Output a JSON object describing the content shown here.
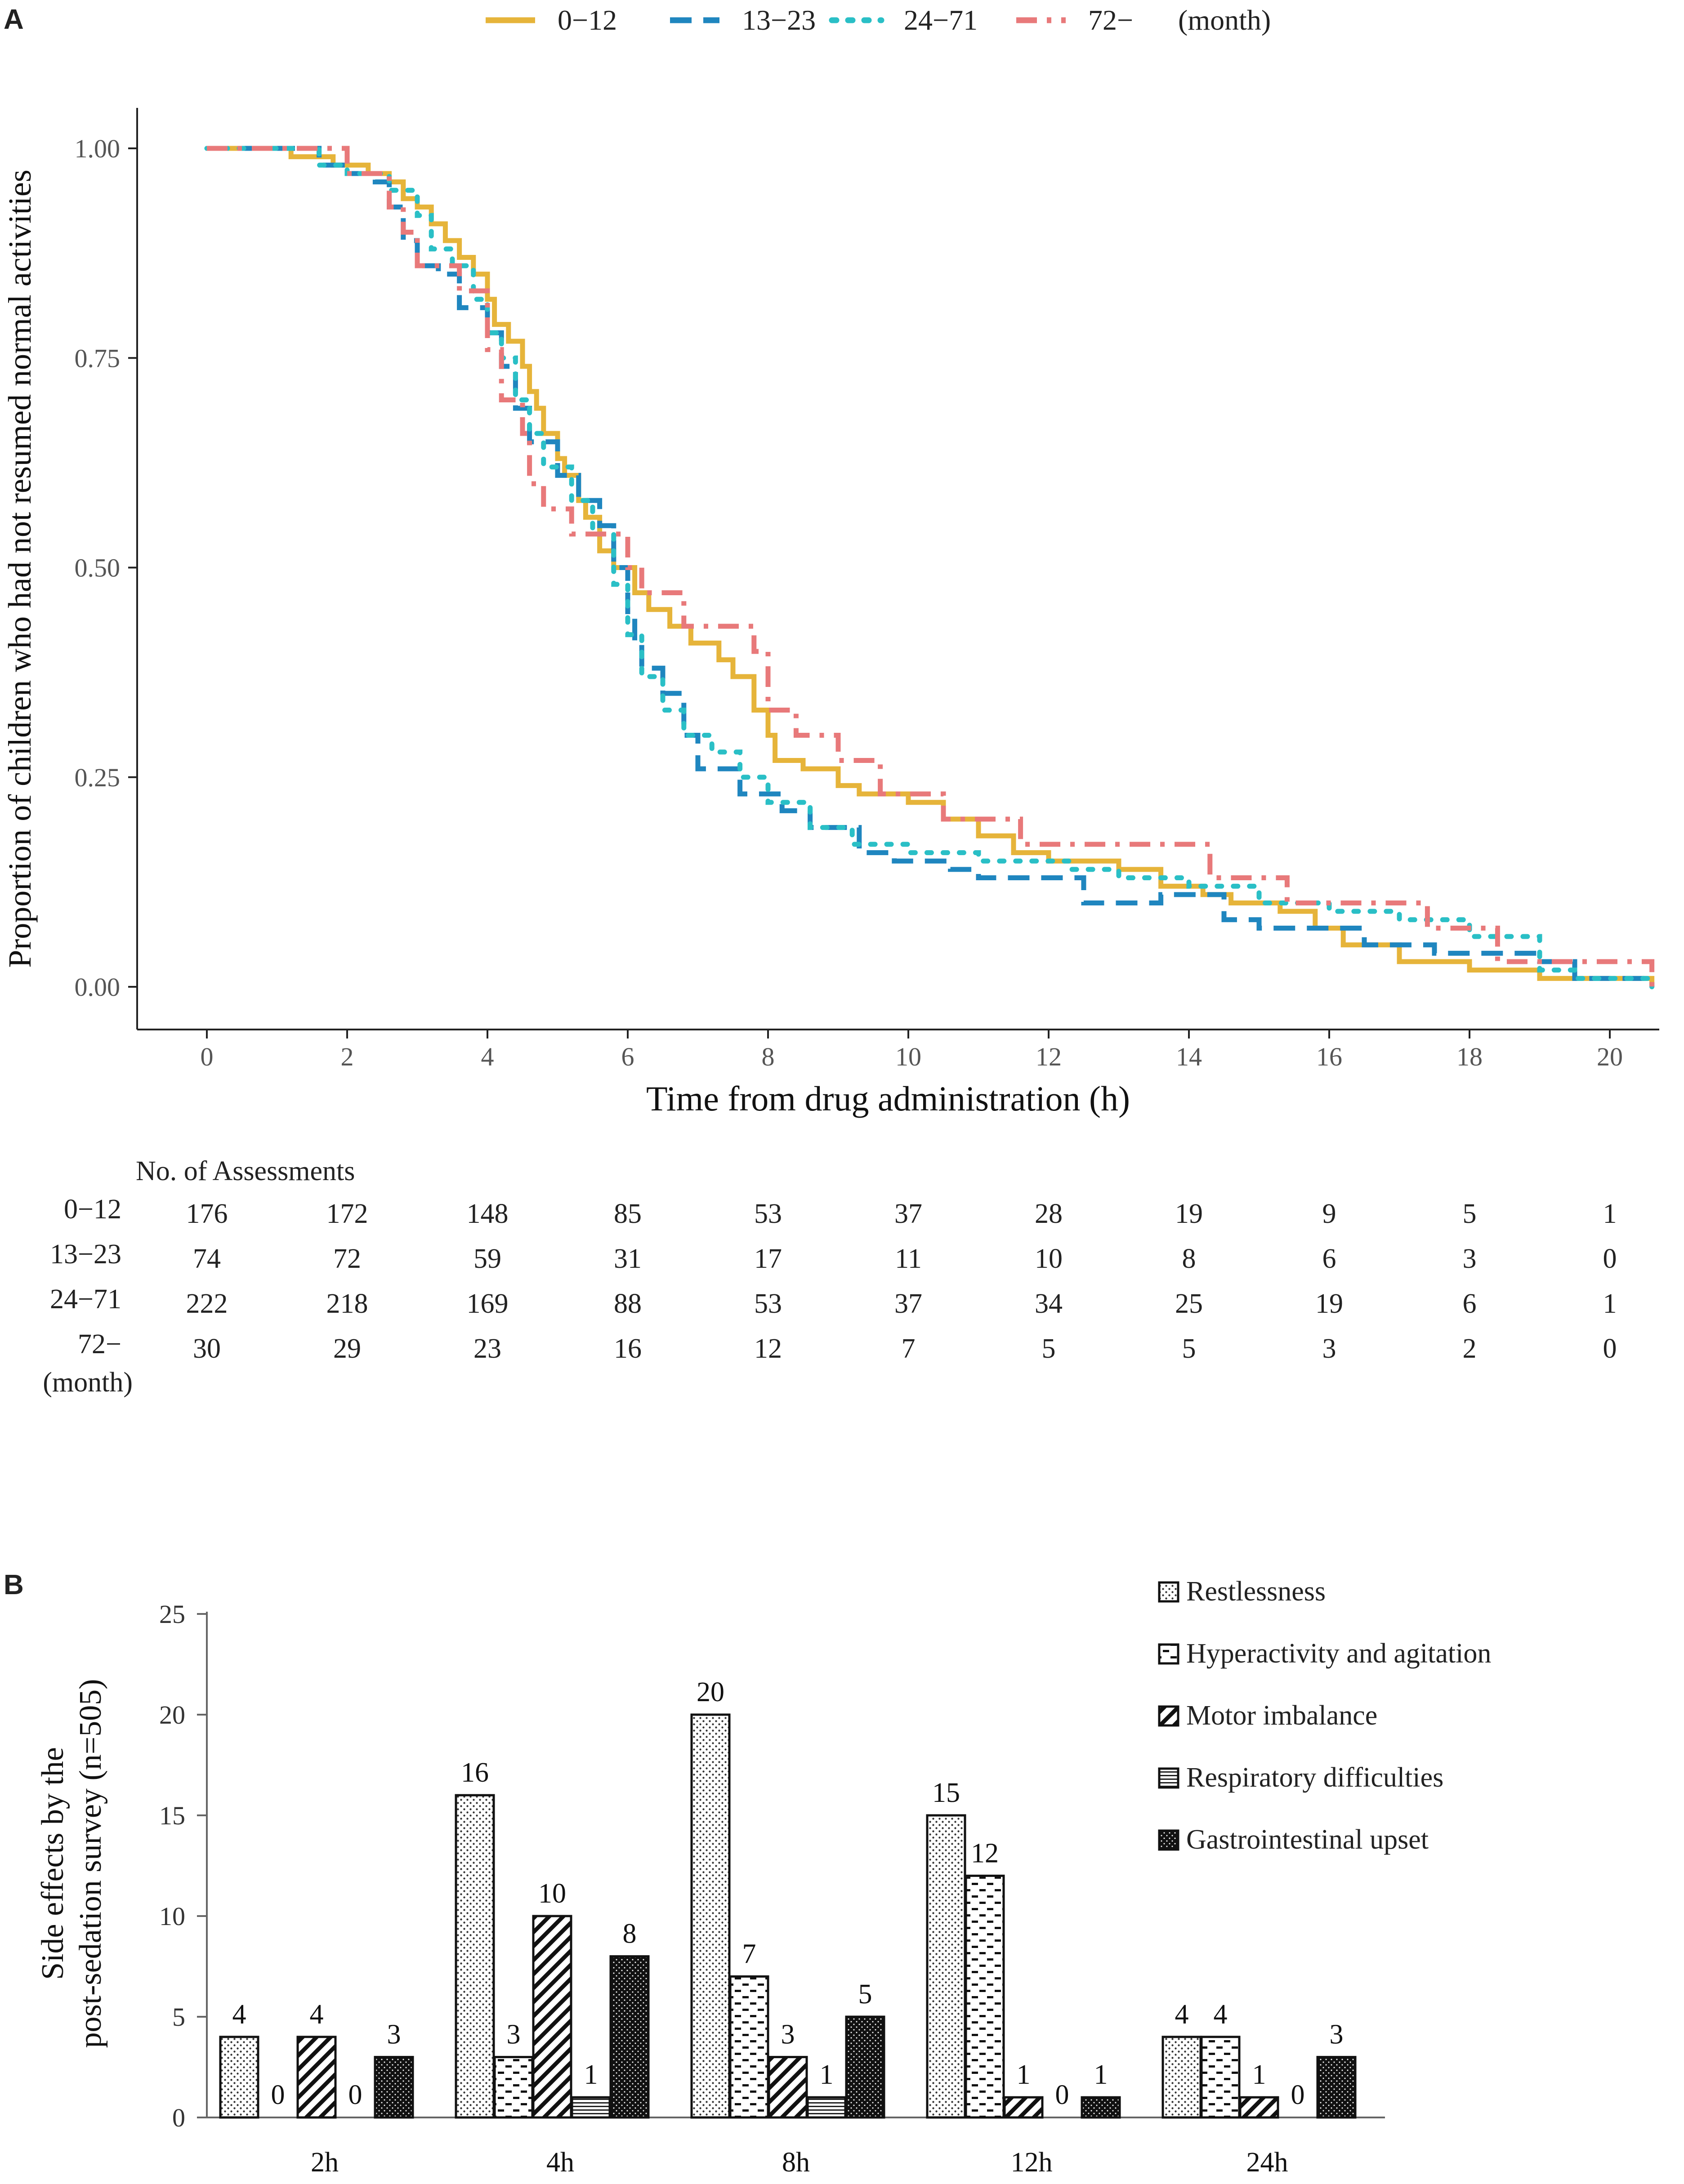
{
  "panel_a": {
    "letter": "A",
    "legend_unit": "(month)",
    "risk_table": {
      "title": "No. of Assessments",
      "unit_label": "(month)",
      "rows": [
        {
          "label": "0−12",
          "values": [
            176,
            172,
            148,
            85,
            53,
            37,
            28,
            19,
            9,
            5,
            1
          ]
        },
        {
          "label": "13−23",
          "values": [
            74,
            72,
            59,
            31,
            17,
            11,
            10,
            8,
            6,
            3,
            0
          ]
        },
        {
          "label": "24−71",
          "values": [
            222,
            218,
            169,
            88,
            53,
            37,
            34,
            25,
            19,
            6,
            1
          ]
        },
        {
          "label": "72−",
          "values": [
            30,
            29,
            23,
            16,
            12,
            7,
            5,
            5,
            3,
            2,
            0
          ]
        }
      ]
    }
  },
  "panel_b": {
    "letter": "B"
  },
  "colors": {
    "g0_12": "#E6B43A",
    "g13_23": "#1F86BF",
    "g24_71": "#2ABFC6",
    "g72": "#E8797A",
    "axis": "#222222"
  },
  "chart_data": [
    {
      "type": "line",
      "subtype": "kaplan-meier step",
      "title": "",
      "xlabel": "Time from drug administration (h)",
      "ylabel": "Proportion of children who had not resumed normal activities",
      "xlim": [
        0,
        20.7
      ],
      "ylim": [
        0,
        1
      ],
      "x_ticks": [
        0,
        2,
        4,
        6,
        8,
        10,
        12,
        14,
        16,
        18,
        20
      ],
      "y_ticks": [
        "0.00",
        "0.25",
        "0.50",
        "0.75",
        "1.00"
      ],
      "legend_position": "top",
      "series": [
        {
          "name": "0−12",
          "style": "solid",
          "points": [
            [
              0,
              1
            ],
            [
              1.0,
              1
            ],
            [
              1.2,
              0.99
            ],
            [
              1.8,
              0.98
            ],
            [
              2.3,
              0.97
            ],
            [
              2.6,
              0.96
            ],
            [
              2.8,
              0.94
            ],
            [
              3.0,
              0.93
            ],
            [
              3.2,
              0.91
            ],
            [
              3.4,
              0.89
            ],
            [
              3.6,
              0.87
            ],
            [
              3.8,
              0.85
            ],
            [
              4.0,
              0.82
            ],
            [
              4.1,
              0.79
            ],
            [
              4.3,
              0.77
            ],
            [
              4.5,
              0.74
            ],
            [
              4.6,
              0.71
            ],
            [
              4.7,
              0.69
            ],
            [
              4.8,
              0.66
            ],
            [
              5.0,
              0.63
            ],
            [
              5.1,
              0.61
            ],
            [
              5.3,
              0.58
            ],
            [
              5.4,
              0.56
            ],
            [
              5.6,
              0.52
            ],
            [
              5.8,
              0.5
            ],
            [
              6.1,
              0.47
            ],
            [
              6.3,
              0.45
            ],
            [
              6.6,
              0.43
            ],
            [
              6.9,
              0.41
            ],
            [
              7.3,
              0.39
            ],
            [
              7.5,
              0.37
            ],
            [
              7.8,
              0.33
            ],
            [
              8.0,
              0.3
            ],
            [
              8.1,
              0.27
            ],
            [
              8.5,
              0.26
            ],
            [
              9.0,
              0.24
            ],
            [
              9.3,
              0.23
            ],
            [
              10.0,
              0.22
            ],
            [
              10.5,
              0.2
            ],
            [
              11.0,
              0.18
            ],
            [
              11.5,
              0.16
            ],
            [
              12.0,
              0.15
            ],
            [
              13.0,
              0.14
            ],
            [
              13.6,
              0.12
            ],
            [
              14.2,
              0.11
            ],
            [
              14.6,
              0.1
            ],
            [
              15.3,
              0.09
            ],
            [
              15.8,
              0.07
            ],
            [
              16.2,
              0.05
            ],
            [
              17.0,
              0.03
            ],
            [
              18.0,
              0.02
            ],
            [
              19.0,
              0.01
            ],
            [
              20.6,
              0.0
            ]
          ]
        },
        {
          "name": "13−23",
          "style": "dashed",
          "points": [
            [
              0,
              1
            ],
            [
              1.3,
              1
            ],
            [
              1.6,
              0.98
            ],
            [
              2.0,
              0.97
            ],
            [
              2.4,
              0.96
            ],
            [
              2.6,
              0.93
            ],
            [
              2.8,
              0.89
            ],
            [
              3.0,
              0.86
            ],
            [
              3.3,
              0.85
            ],
            [
              3.6,
              0.81
            ],
            [
              4.0,
              0.78
            ],
            [
              4.2,
              0.74
            ],
            [
              4.4,
              0.69
            ],
            [
              4.6,
              0.65
            ],
            [
              5.0,
              0.61
            ],
            [
              5.3,
              0.58
            ],
            [
              5.6,
              0.55
            ],
            [
              5.8,
              0.5
            ],
            [
              6.0,
              0.44
            ],
            [
              6.1,
              0.41
            ],
            [
              6.2,
              0.38
            ],
            [
              6.5,
              0.35
            ],
            [
              6.8,
              0.3
            ],
            [
              7.0,
              0.26
            ],
            [
              7.6,
              0.23
            ],
            [
              8.2,
              0.21
            ],
            [
              8.6,
              0.19
            ],
            [
              9.3,
              0.16
            ],
            [
              9.8,
              0.15
            ],
            [
              10.6,
              0.14
            ],
            [
              11.0,
              0.13
            ],
            [
              12.5,
              0.1
            ],
            [
              13.6,
              0.11
            ],
            [
              14.5,
              0.08
            ],
            [
              15.0,
              0.07
            ],
            [
              16.5,
              0.05
            ],
            [
              17.5,
              0.04
            ],
            [
              19.0,
              0.03
            ],
            [
              19.5,
              0.01
            ],
            [
              20.6,
              0.0
            ]
          ]
        },
        {
          "name": "24−71",
          "style": "dotted",
          "points": [
            [
              0,
              1
            ],
            [
              1.2,
              1
            ],
            [
              1.6,
              0.98
            ],
            [
              2.0,
              0.97
            ],
            [
              2.6,
              0.95
            ],
            [
              3.0,
              0.92
            ],
            [
              3.2,
              0.88
            ],
            [
              3.5,
              0.86
            ],
            [
              3.8,
              0.82
            ],
            [
              4.0,
              0.78
            ],
            [
              4.2,
              0.75
            ],
            [
              4.4,
              0.7
            ],
            [
              4.6,
              0.66
            ],
            [
              4.8,
              0.62
            ],
            [
              5.2,
              0.58
            ],
            [
              5.5,
              0.54
            ],
            [
              5.8,
              0.48
            ],
            [
              6.0,
              0.42
            ],
            [
              6.2,
              0.37
            ],
            [
              6.5,
              0.33
            ],
            [
              6.8,
              0.3
            ],
            [
              7.2,
              0.28
            ],
            [
              7.6,
              0.25
            ],
            [
              8.0,
              0.22
            ],
            [
              8.6,
              0.19
            ],
            [
              9.2,
              0.17
            ],
            [
              10.0,
              0.16
            ],
            [
              11.0,
              0.15
            ],
            [
              12.3,
              0.14
            ],
            [
              13.0,
              0.13
            ],
            [
              14.0,
              0.12
            ],
            [
              15.0,
              0.1
            ],
            [
              16.0,
              0.09
            ],
            [
              17.0,
              0.08
            ],
            [
              18.0,
              0.06
            ],
            [
              19.0,
              0.02
            ],
            [
              19.5,
              0.01
            ],
            [
              20.6,
              0.0
            ]
          ]
        },
        {
          "name": "72−",
          "style": "dash-dot",
          "points": [
            [
              0,
              1
            ],
            [
              1.3,
              1
            ],
            [
              2.0,
              0.97
            ],
            [
              2.6,
              0.93
            ],
            [
              2.8,
              0.9
            ],
            [
              3.0,
              0.86
            ],
            [
              3.6,
              0.83
            ],
            [
              4.0,
              0.76
            ],
            [
              4.2,
              0.7
            ],
            [
              4.5,
              0.66
            ],
            [
              4.6,
              0.6
            ],
            [
              4.8,
              0.57
            ],
            [
              5.2,
              0.54
            ],
            [
              6.0,
              0.5
            ],
            [
              6.2,
              0.47
            ],
            [
              6.8,
              0.43
            ],
            [
              7.8,
              0.4
            ],
            [
              8.0,
              0.33
            ],
            [
              8.4,
              0.3
            ],
            [
              9.0,
              0.27
            ],
            [
              9.6,
              0.23
            ],
            [
              10.5,
              0.2
            ],
            [
              11.6,
              0.17
            ],
            [
              13.0,
              0.17
            ],
            [
              14.3,
              0.13
            ],
            [
              15.4,
              0.1
            ],
            [
              17.4,
              0.07
            ],
            [
              18.4,
              0.03
            ],
            [
              20.6,
              0.0
            ]
          ]
        }
      ]
    },
    {
      "type": "bar",
      "title": "",
      "xlabel": "",
      "ylabel": "Side effects by the post-sedation survey (n=505)",
      "ylim": [
        0,
        25
      ],
      "y_ticks": [
        0,
        5,
        10,
        15,
        20,
        25
      ],
      "categories": [
        "2h",
        "4h",
        "8h",
        "12h",
        "24h"
      ],
      "legend_position": "top-right",
      "series": [
        {
          "name": "Restlessness",
          "pattern": "dots",
          "values": [
            4,
            16,
            20,
            15,
            4
          ]
        },
        {
          "name": "Hyperactivity and agitation",
          "pattern": "dashes",
          "values": [
            0,
            3,
            7,
            12,
            4
          ]
        },
        {
          "name": "Motor imbalance",
          "pattern": "diagonal",
          "values": [
            4,
            10,
            3,
            1,
            1
          ]
        },
        {
          "name": "Respiratory difficulties",
          "pattern": "horizontal-lines",
          "values": [
            0,
            1,
            1,
            0,
            0
          ]
        },
        {
          "name": "Gastrointestinal upset",
          "pattern": "dark-dots",
          "values": [
            3,
            8,
            5,
            1,
            3
          ]
        }
      ]
    }
  ]
}
